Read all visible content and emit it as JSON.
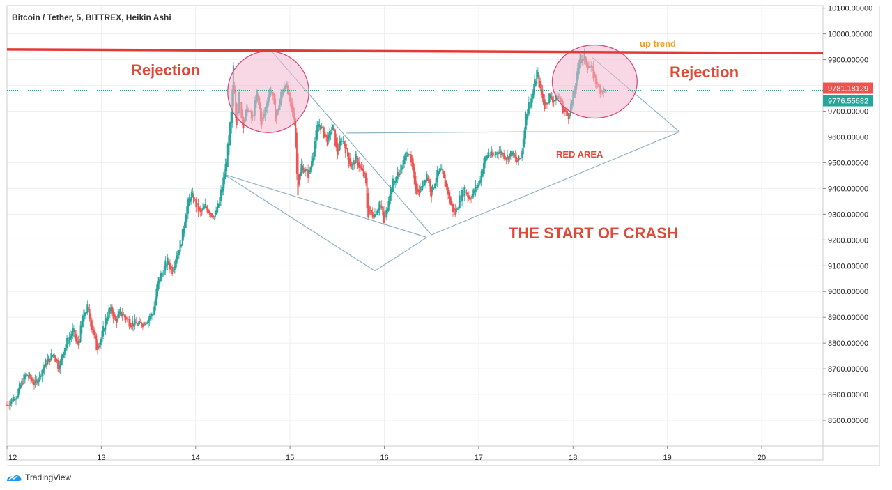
{
  "header": {
    "title": "Bitcoin / Tether, 5, BITTREX, Heikin Ashi"
  },
  "footer": {
    "brand": "TradingView",
    "logo_icon": "tradingview-logo-icon"
  },
  "colors": {
    "up_candle": "#26a69a",
    "down_candle": "#ef5350",
    "resistance_line": "#e53935",
    "pattern_line": "#8fb4c4",
    "ellipse_fill": "#f4b8cf",
    "ellipse_stroke": "#d64b7a",
    "tag_red": "#ef5350",
    "tag_green": "#26a69a",
    "annotation_red": "#e0483a",
    "annotation_orange": "#f0a020"
  },
  "chart_data": {
    "type": "candlestick",
    "title": "Bitcoin / Tether, 5, BITTREX, Heikin Ashi",
    "x_tick_labels": [
      "12",
      "13",
      "14",
      "15",
      "16",
      "17",
      "18",
      "19",
      "20"
    ],
    "x_ticks": [
      12,
      13,
      14,
      15,
      16,
      17,
      18,
      19,
      20
    ],
    "xlim": [
      12,
      20.65
    ],
    "y_tick_labels": [
      "10100.00000",
      "10000.00000",
      "9900.00000",
      "9800.00000",
      "9700.00000",
      "9600.00000",
      "9500.00000",
      "9400.00000",
      "9300.00000",
      "9200.00000",
      "9100.00000",
      "9000.00000",
      "8900.00000",
      "8800.00000",
      "8700.00000",
      "8600.00000",
      "8500.00000"
    ],
    "y_ticks": [
      10100,
      10000,
      9900,
      9800,
      9700,
      9600,
      9500,
      9400,
      9300,
      9200,
      9100,
      9000,
      8900,
      8800,
      8700,
      8600,
      8500
    ],
    "ylim": [
      8400,
      10110
    ],
    "grid": true,
    "price_path": [
      [
        12.0,
        8560
      ],
      [
        12.1,
        8600
      ],
      [
        12.2,
        8680
      ],
      [
        12.3,
        8640
      ],
      [
        12.4,
        8720
      ],
      [
        12.5,
        8760
      ],
      [
        12.55,
        8700
      ],
      [
        12.6,
        8780
      ],
      [
        12.7,
        8850
      ],
      [
        12.75,
        8780
      ],
      [
        12.8,
        8900
      ],
      [
        12.85,
        8940
      ],
      [
        12.9,
        8860
      ],
      [
        12.95,
        8780
      ],
      [
        13.0,
        8820
      ],
      [
        13.05,
        8900
      ],
      [
        13.1,
        8940
      ],
      [
        13.15,
        8880
      ],
      [
        13.2,
        8920
      ],
      [
        13.3,
        8880
      ],
      [
        13.4,
        8870
      ],
      [
        13.45,
        8880
      ],
      [
        13.5,
        8900
      ],
      [
        13.55,
        8920
      ],
      [
        13.6,
        9040
      ],
      [
        13.7,
        9120
      ],
      [
        13.75,
        9080
      ],
      [
        13.8,
        9150
      ],
      [
        13.85,
        9200
      ],
      [
        13.9,
        9320
      ],
      [
        13.95,
        9380
      ],
      [
        14.0,
        9340
      ],
      [
        14.05,
        9300
      ],
      [
        14.1,
        9330
      ],
      [
        14.15,
        9310
      ],
      [
        14.2,
        9290
      ],
      [
        14.25,
        9350
      ],
      [
        14.3,
        9450
      ],
      [
        14.33,
        9520
      ],
      [
        14.38,
        9700
      ],
      [
        14.4,
        9880
      ],
      [
        14.43,
        9640
      ],
      [
        14.46,
        9760
      ],
      [
        14.5,
        9640
      ],
      [
        14.55,
        9720
      ],
      [
        14.6,
        9660
      ],
      [
        14.65,
        9780
      ],
      [
        14.7,
        9640
      ],
      [
        14.75,
        9740
      ],
      [
        14.8,
        9800
      ],
      [
        14.85,
        9660
      ],
      [
        14.9,
        9760
      ],
      [
        14.95,
        9820
      ],
      [
        15.0,
        9720
      ],
      [
        15.05,
        9660
      ],
      [
        15.08,
        9380
      ],
      [
        15.12,
        9490
      ],
      [
        15.2,
        9450
      ],
      [
        15.3,
        9660
      ],
      [
        15.35,
        9620
      ],
      [
        15.4,
        9580
      ],
      [
        15.45,
        9650
      ],
      [
        15.5,
        9530
      ],
      [
        15.55,
        9600
      ],
      [
        15.6,
        9540
      ],
      [
        15.65,
        9480
      ],
      [
        15.7,
        9520
      ],
      [
        15.75,
        9470
      ],
      [
        15.8,
        9440
      ],
      [
        15.82,
        9300
      ],
      [
        15.9,
        9300
      ],
      [
        15.95,
        9350
      ],
      [
        16.0,
        9260
      ],
      [
        16.05,
        9380
      ],
      [
        16.1,
        9430
      ],
      [
        16.15,
        9460
      ],
      [
        16.2,
        9500
      ],
      [
        16.25,
        9560
      ],
      [
        16.3,
        9460
      ],
      [
        16.35,
        9380
      ],
      [
        16.4,
        9410
      ],
      [
        16.45,
        9460
      ],
      [
        16.5,
        9380
      ],
      [
        16.55,
        9450
      ],
      [
        16.6,
        9470
      ],
      [
        16.65,
        9410
      ],
      [
        16.7,
        9340
      ],
      [
        16.75,
        9300
      ],
      [
        16.8,
        9360
      ],
      [
        16.85,
        9400
      ],
      [
        16.9,
        9360
      ],
      [
        17.0,
        9420
      ],
      [
        17.05,
        9500
      ],
      [
        17.1,
        9540
      ],
      [
        17.15,
        9520
      ],
      [
        17.2,
        9550
      ],
      [
        17.3,
        9520
      ],
      [
        17.35,
        9540
      ],
      [
        17.4,
        9500
      ],
      [
        17.45,
        9520
      ],
      [
        17.5,
        9700
      ],
      [
        17.55,
        9740
      ],
      [
        17.6,
        9820
      ],
      [
        17.62,
        9860
      ],
      [
        17.65,
        9780
      ],
      [
        17.7,
        9720
      ],
      [
        17.75,
        9760
      ],
      [
        17.8,
        9740
      ],
      [
        17.85,
        9760
      ],
      [
        17.9,
        9700
      ],
      [
        17.95,
        9680
      ],
      [
        18.0,
        9760
      ],
      [
        18.05,
        9860
      ],
      [
        18.08,
        9940
      ],
      [
        18.1,
        9880
      ],
      [
        18.12,
        9910
      ],
      [
        18.15,
        9880
      ],
      [
        18.2,
        9860
      ],
      [
        18.25,
        9800
      ],
      [
        18.3,
        9780
      ],
      [
        18.35,
        9781
      ]
    ],
    "last_price": "9781.18129",
    "last_price_alt": "9776.55682",
    "annotations": {
      "rejection_left": "Rejection",
      "rejection_right": "Rejection",
      "up_trend": "up trend",
      "red_area": "RED AREA",
      "start_of_crash": "THE START OF CRASH"
    },
    "resistance_line": [
      [
        12.0,
        9940
      ],
      [
        20.65,
        9925
      ]
    ],
    "pattern_lines": [
      [
        [
          14.3,
          9455
        ],
        [
          16.45,
          9210
        ]
      ],
      [
        [
          14.3,
          9455
        ],
        [
          15.9,
          9080
        ]
      ],
      [
        [
          15.9,
          9080
        ],
        [
          16.45,
          9210
        ]
      ],
      [
        [
          14.8,
          9935
        ],
        [
          16.5,
          9220
        ]
      ],
      [
        [
          16.5,
          9220
        ],
        [
          19.13,
          9620
        ]
      ],
      [
        [
          15.6,
          9615
        ],
        [
          17.5,
          9620
        ]
      ],
      [
        [
          17.5,
          9620
        ],
        [
          19.13,
          9620
        ]
      ],
      [
        [
          18.2,
          9910
        ],
        [
          19.13,
          9620
        ]
      ]
    ],
    "ellipses": [
      {
        "cx": 14.77,
        "cy": 9775,
        "rx": 0.43,
        "ry": 158
      },
      {
        "cx": 18.23,
        "cy": 9815,
        "rx": 0.45,
        "ry": 142
      }
    ]
  }
}
